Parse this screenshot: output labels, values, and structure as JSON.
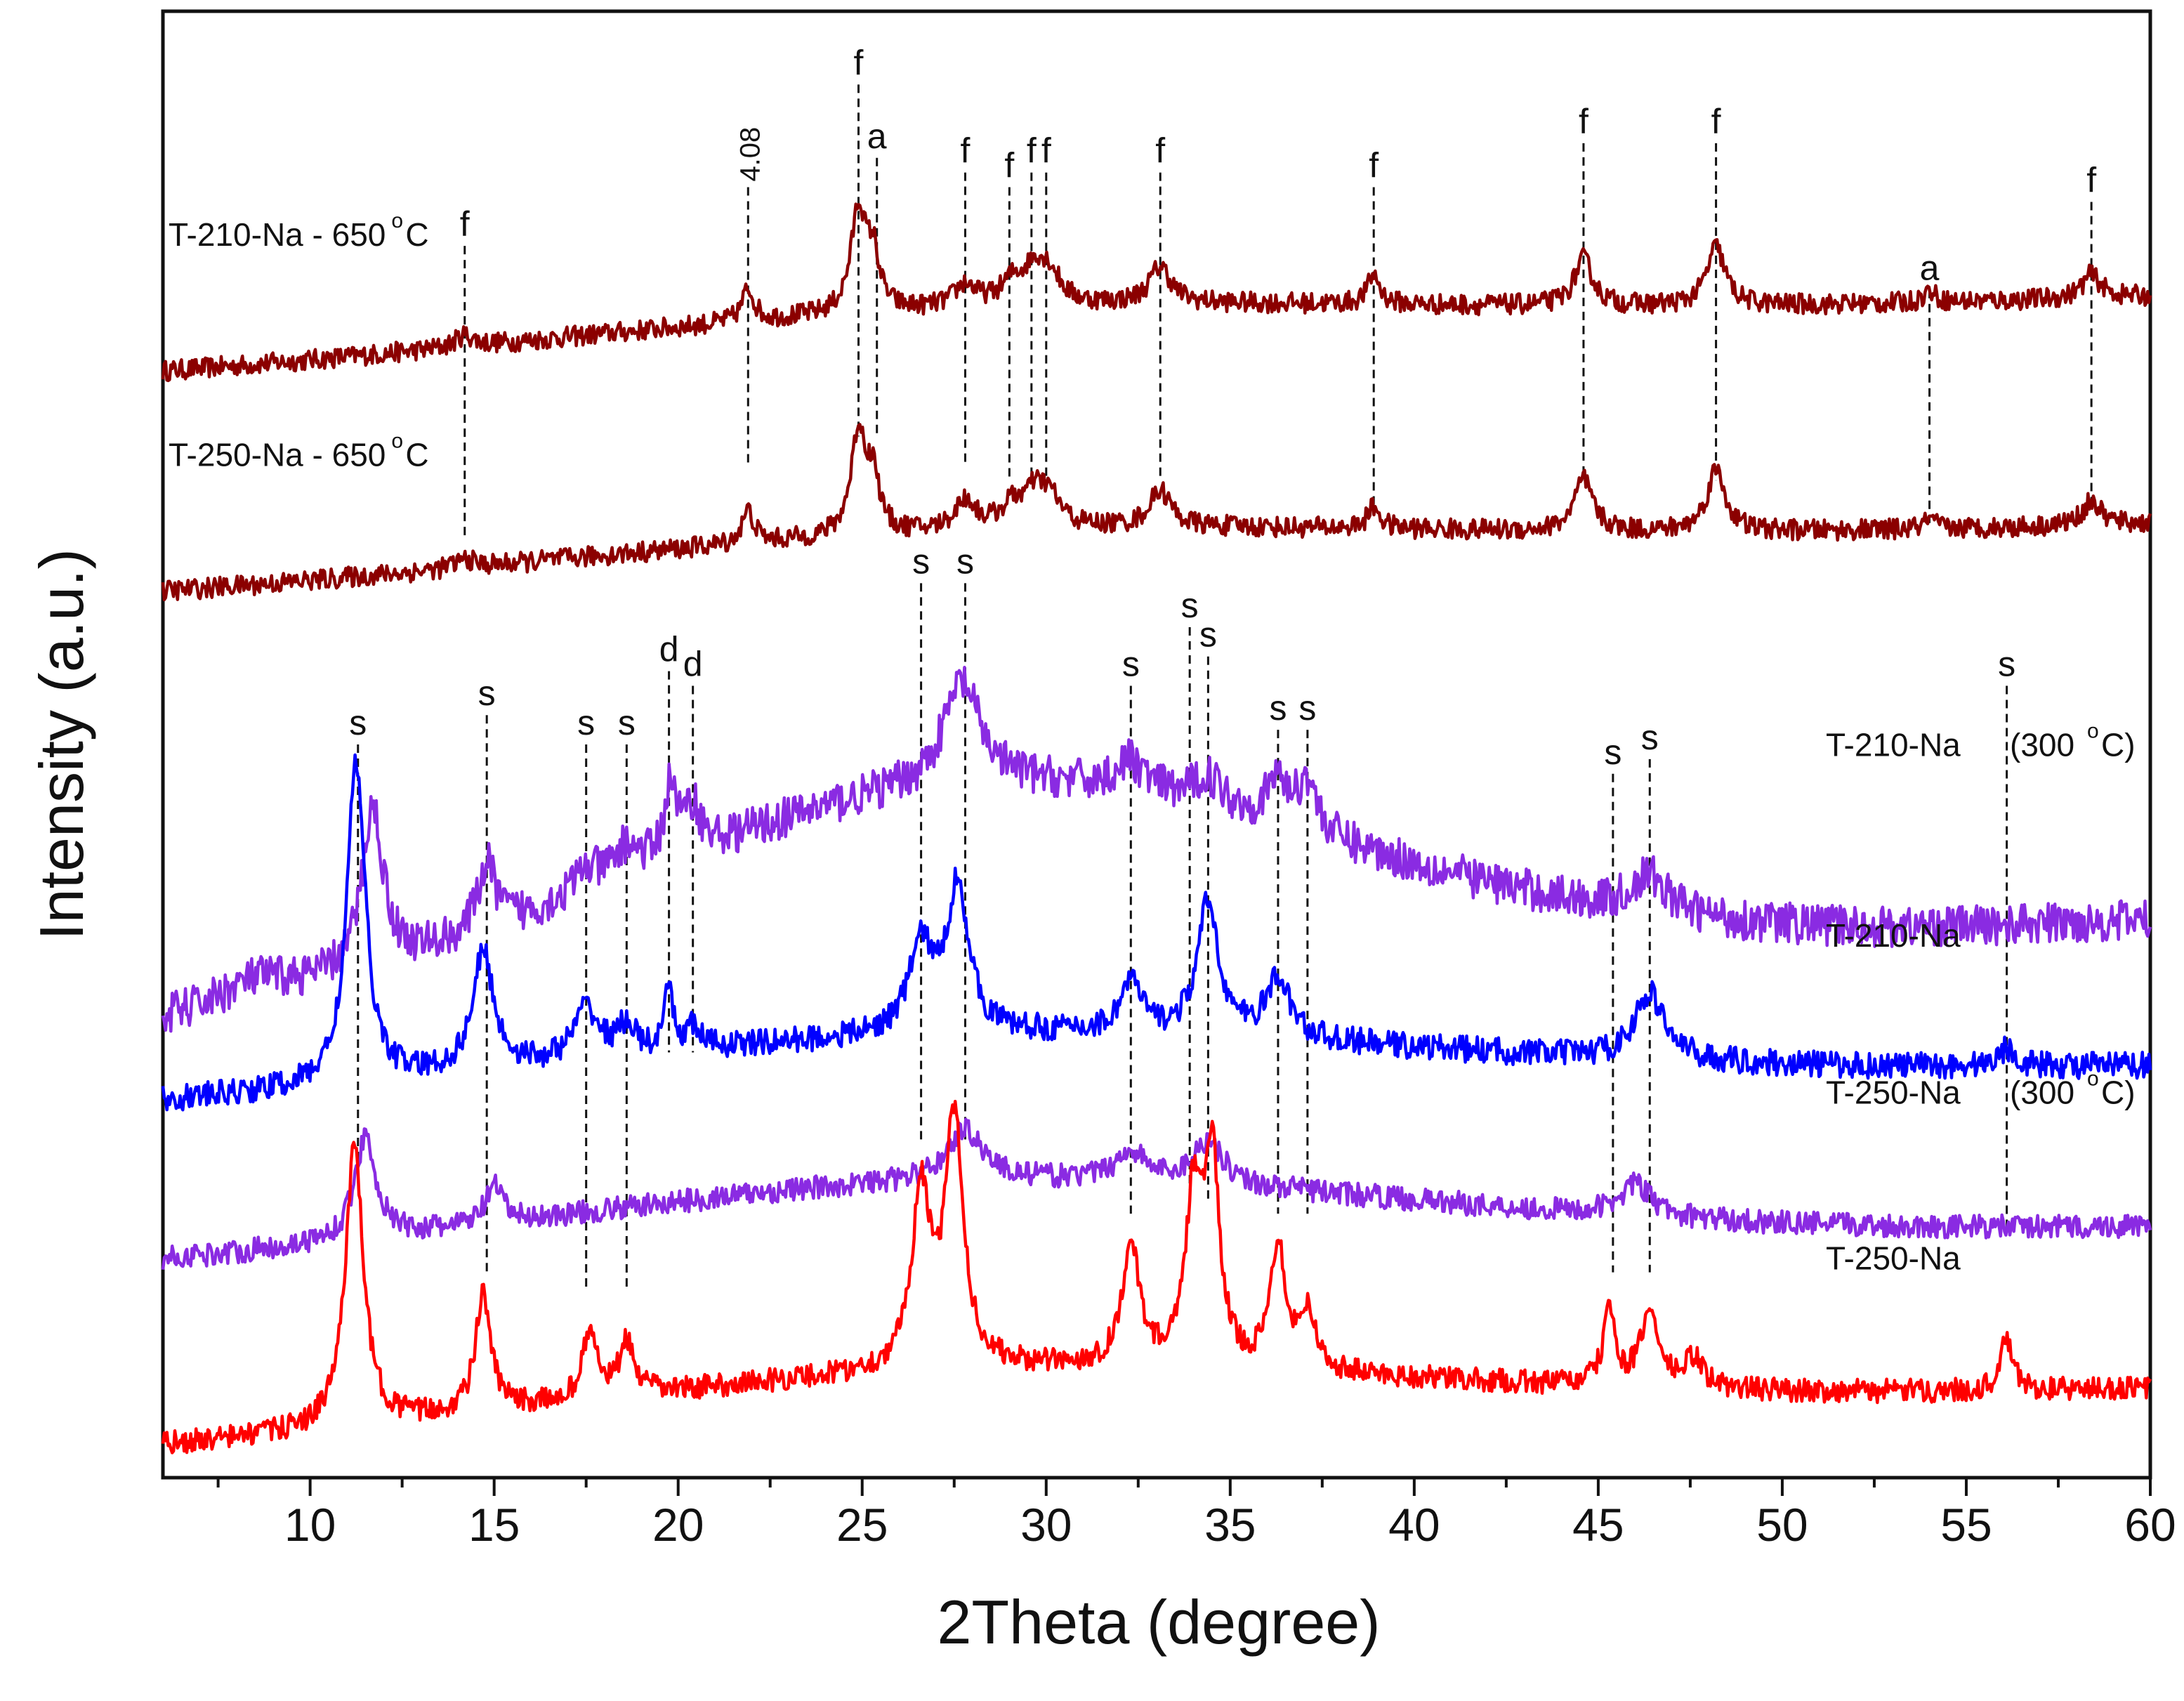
{
  "chart_data": {
    "type": "line",
    "title": "",
    "xlabel": "2Theta (degree)",
    "ylabel": "Intensity (a.u.)",
    "xlim": [
      6,
      60
    ],
    "xticks": [
      10,
      15,
      20,
      25,
      30,
      35,
      40,
      45,
      50,
      55,
      60
    ],
    "ylim": [
      0,
      100
    ],
    "y_units": "arbitrary offset intensity",
    "grid": false,
    "legend": "inline labels at right",
    "series": [
      {
        "name": "T-210-Na - 650 °C",
        "label_text": "T-210-Na - 650",
        "label_side": "left",
        "color": "#8b0000",
        "baseline_start": 75,
        "baseline_end": 80.5,
        "hump": {
          "center": 28,
          "width": 12,
          "height": 2.5
        },
        "noise": 0.7,
        "peaks": [
          [
            14.2,
            0.8,
            0.3
          ],
          [
            21.9,
            2.2,
            0.2
          ],
          [
            24.9,
            7,
            0.25
          ],
          [
            25.3,
            3.5,
            0.2
          ],
          [
            27.8,
            1.5,
            0.35
          ],
          [
            29.1,
            1.5,
            0.4
          ],
          [
            29.7,
            2.2,
            0.35
          ],
          [
            30.1,
            1.8,
            0.35
          ],
          [
            33.1,
            2.5,
            0.35
          ],
          [
            38.9,
            2,
            0.2
          ],
          [
            44.6,
            3.2,
            0.3
          ],
          [
            48.2,
            4,
            0.3
          ],
          [
            54,
            0.8,
            0.2
          ],
          [
            58.4,
            1.6,
            0.3
          ]
        ]
      },
      {
        "name": "T-250-Na - 650 °C",
        "label_text": "T-250-Na - 650",
        "label_side": "left",
        "color": "#8b0000",
        "baseline_start": 60,
        "baseline_end": 65,
        "hump": {
          "center": 28,
          "width": 12,
          "height": 2.5
        },
        "noise": 0.7,
        "peaks": [
          [
            14.2,
            0.6,
            0.3
          ],
          [
            21.9,
            2.2,
            0.2
          ],
          [
            24.9,
            7,
            0.25
          ],
          [
            25.3,
            3.5,
            0.2
          ],
          [
            27.8,
            2,
            0.35
          ],
          [
            29.1,
            1.5,
            0.4
          ],
          [
            29.7,
            2,
            0.35
          ],
          [
            30.1,
            1.8,
            0.35
          ],
          [
            33.1,
            2.5,
            0.35
          ],
          [
            38.9,
            1.5,
            0.2
          ],
          [
            44.6,
            3.5,
            0.3
          ],
          [
            48.2,
            4.2,
            0.3
          ],
          [
            54,
            0.6,
            0.2
          ],
          [
            58.4,
            1.6,
            0.3
          ]
        ]
      },
      {
        "name": "T-210-Na (300 °C)",
        "label_text": "T-210-Na",
        "label_temp": "(300",
        "label_side": "right",
        "color": "#8a2be2",
        "baseline_start": 30,
        "baseline_end": 38,
        "hump": {
          "center": 28,
          "width": 10,
          "height": 14
        },
        "noise": 1.4,
        "peaks": [
          [
            8.5,
            1.5,
            1.2
          ],
          [
            11.7,
            11,
            0.35
          ],
          [
            14.8,
            4.5,
            0.3
          ],
          [
            17.5,
            1.5,
            0.4
          ],
          [
            18.6,
            2,
            0.4
          ],
          [
            19.8,
            5,
            0.2
          ],
          [
            20.4,
            3,
            0.25
          ],
          [
            27.7,
            7,
            0.6
          ],
          [
            32.3,
            2,
            0.5
          ],
          [
            34.4,
            2,
            0.5
          ],
          [
            36.3,
            3,
            0.35
          ],
          [
            37.1,
            3.5,
            0.3
          ],
          [
            46.4,
            2.5,
            0.6
          ]
        ]
      },
      {
        "name": "T-210-Na",
        "label_text": "T-210-Na",
        "label_side": "right",
        "color": "#0000ff",
        "baseline_start": 25,
        "baseline_end": 28,
        "hump": {
          "center": 28,
          "width": 12,
          "height": 4
        },
        "noise": 0.9,
        "peaks": [
          [
            11.25,
            22,
            0.3
          ],
          [
            14.7,
            8,
            0.35
          ],
          [
            17.5,
            3.5,
            0.4
          ],
          [
            18.6,
            2,
            0.3
          ],
          [
            19.75,
            4.5,
            0.12
          ],
          [
            20.4,
            1.5,
            0.25
          ],
          [
            26.6,
            6,
            0.4
          ],
          [
            27.6,
            10,
            0.35
          ],
          [
            32.3,
            3.5,
            0.35
          ],
          [
            34.4,
            9,
            0.35
          ],
          [
            36.3,
            4,
            0.4
          ],
          [
            46.4,
            4.5,
            0.5
          ],
          [
            56.1,
            1.2,
            0.3
          ]
        ]
      },
      {
        "name": "T-250-Na (300 °C)",
        "label_text": "T-250-Na",
        "label_temp": "(300",
        "label_side": "right",
        "color": "#8a2be2",
        "baseline_start": 14,
        "baseline_end": 17,
        "hump": {
          "center": 28,
          "width": 12,
          "height": 5
        },
        "noise": 0.8,
        "peaks": [
          [
            11.5,
            7,
            0.35
          ],
          [
            15,
            2.5,
            0.3
          ],
          [
            27.8,
            3.5,
            0.6
          ],
          [
            32.3,
            2,
            0.5
          ],
          [
            34.4,
            3,
            0.5
          ],
          [
            46,
            2.2,
            0.5
          ]
        ]
      },
      {
        "name": "T-250-Na",
        "label_text": "T-250-Na",
        "label_side": "right",
        "color": "#ff0000",
        "baseline_start": 1.5,
        "baseline_end": 6,
        "hump": {
          "center": 28,
          "width": 12,
          "height": 4
        },
        "noise": 0.8,
        "peaks": [
          [
            11.2,
            19,
            0.3
          ],
          [
            14.7,
            8,
            0.25
          ],
          [
            17.6,
            4.5,
            0.25
          ],
          [
            18.6,
            3.5,
            0.25
          ],
          [
            26.6,
            12,
            0.3
          ],
          [
            27.5,
            17,
            0.3
          ],
          [
            32.3,
            8,
            0.3
          ],
          [
            34,
            11,
            0.25
          ],
          [
            34.5,
            14,
            0.25
          ],
          [
            36.3,
            8.5,
            0.25
          ],
          [
            37.1,
            4,
            0.25
          ],
          [
            45.3,
            5,
            0.2
          ],
          [
            46.4,
            5,
            0.3
          ],
          [
            47.6,
            2,
            0.3
          ],
          [
            56.1,
            3.5,
            0.2
          ]
        ]
      }
    ],
    "annotations": [
      {
        "x": 14.2,
        "label": "f",
        "y_top": 84,
        "y_bottom": 64
      },
      {
        "x": 21.9,
        "label": "4.08",
        "y_top": 88,
        "y_bottom": 69,
        "rotate": true
      },
      {
        "x": 24.9,
        "label": "f",
        "y_top": 95,
        "y_bottom": 71
      },
      {
        "x": 25.4,
        "label": "a",
        "y_top": 90,
        "y_bottom": 71
      },
      {
        "x": 27.8,
        "label": "f",
        "y_top": 89,
        "y_bottom": 69
      },
      {
        "x": 29.0,
        "label": "f",
        "y_top": 88,
        "y_bottom": 68
      },
      {
        "x": 29.6,
        "label": "f",
        "y_top": 89,
        "y_bottom": 68
      },
      {
        "x": 30.0,
        "label": "f",
        "y_top": 89,
        "y_bottom": 68
      },
      {
        "x": 33.1,
        "label": "f",
        "y_top": 89,
        "y_bottom": 68
      },
      {
        "x": 38.9,
        "label": "f",
        "y_top": 88,
        "y_bottom": 66
      },
      {
        "x": 44.6,
        "label": "f",
        "y_top": 91,
        "y_bottom": 68
      },
      {
        "x": 48.2,
        "label": "f",
        "y_top": 91,
        "y_bottom": 68
      },
      {
        "x": 54.0,
        "label": "a",
        "y_top": 81,
        "y_bottom": 65
      },
      {
        "x": 58.4,
        "label": "f",
        "y_top": 87,
        "y_bottom": 66
      },
      {
        "x": 11.3,
        "label": "s",
        "y_top": 50,
        "y_bottom": 21
      },
      {
        "x": 14.8,
        "label": "s",
        "y_top": 52,
        "y_bottom": 14
      },
      {
        "x": 17.5,
        "label": "s",
        "y_top": 50,
        "y_bottom": 13
      },
      {
        "x": 18.6,
        "label": "s",
        "y_top": 50,
        "y_bottom": 13
      },
      {
        "x": 19.75,
        "label": "d",
        "y_top": 55,
        "y_bottom": 29
      },
      {
        "x": 20.4,
        "label": "d",
        "y_top": 54,
        "y_bottom": 29
      },
      {
        "x": 26.6,
        "label": "s",
        "y_top": 61,
        "y_bottom": 23
      },
      {
        "x": 27.8,
        "label": "s",
        "y_top": 61,
        "y_bottom": 23
      },
      {
        "x": 32.3,
        "label": "s",
        "y_top": 54,
        "y_bottom": 18
      },
      {
        "x": 33.9,
        "label": "s",
        "y_top": 58,
        "y_bottom": 19
      },
      {
        "x": 34.4,
        "label": "s",
        "y_top": 56,
        "y_bottom": 19
      },
      {
        "x": 36.3,
        "label": "s",
        "y_top": 51,
        "y_bottom": 18
      },
      {
        "x": 37.1,
        "label": "s",
        "y_top": 51,
        "y_bottom": 18
      },
      {
        "x": 45.4,
        "label": "s",
        "y_top": 48,
        "y_bottom": 14
      },
      {
        "x": 46.4,
        "label": "s",
        "y_top": 49,
        "y_bottom": 14
      },
      {
        "x": 56.1,
        "label": "s",
        "y_top": 54,
        "y_bottom": 17
      }
    ]
  }
}
